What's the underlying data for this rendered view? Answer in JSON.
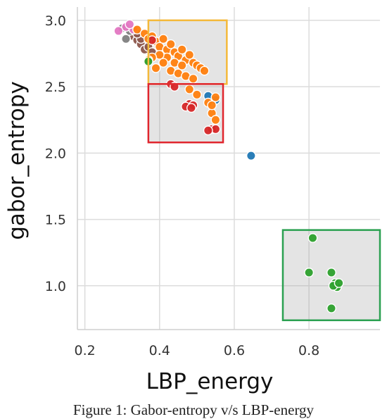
{
  "figure": {
    "caption": "Figure 1: Gabor-entropy v/s LBP-energy"
  },
  "chart_data": {
    "type": "scatter",
    "xlabel": "LBP_energy",
    "ylabel": "gabor_entropy",
    "xlim": [
      0.18,
      0.99
    ],
    "ylim": [
      0.67,
      3.1
    ],
    "xticks": [
      "0.2",
      "0.4",
      "0.6",
      "0.8"
    ],
    "xtick_values": [
      0.2,
      0.4,
      0.6,
      0.8
    ],
    "yticks": [
      "1.0",
      "1.5",
      "2.0",
      "2.5",
      "3.0"
    ],
    "ytick_values": [
      1.0,
      1.5,
      2.0,
      2.5,
      3.0
    ],
    "grid": true,
    "colors": {
      "blue": "#1f77b4",
      "orange": "#ff7f0e",
      "green": "#2ca02c",
      "red": "#d62728",
      "brown": "#8c564b",
      "pink": "#e377c2",
      "gray": "#7f7f7f"
    },
    "series": [
      {
        "color": "#1f77b4",
        "points": [
          [
            0.53,
            2.43
          ],
          [
            0.55,
            2.4
          ],
          [
            0.645,
            1.98
          ]
        ]
      },
      {
        "color": "#8c564b",
        "points": [
          [
            0.33,
            2.88
          ],
          [
            0.34,
            2.85
          ],
          [
            0.35,
            2.82
          ],
          [
            0.36,
            2.78
          ],
          [
            0.37,
            2.8
          ],
          [
            0.38,
            2.76
          ],
          [
            0.35,
            2.86
          ],
          [
            0.34,
            2.9
          ]
        ]
      },
      {
        "color": "#7f7f7f",
        "points": [
          [
            0.3,
            2.94
          ],
          [
            0.31,
            2.86
          ],
          [
            0.32,
            2.92
          ]
        ]
      },
      {
        "color": "#e377c2",
        "points": [
          [
            0.31,
            2.95
          ],
          [
            0.33,
            2.93
          ],
          [
            0.29,
            2.92
          ],
          [
            0.32,
            2.97
          ]
        ]
      },
      {
        "color": "#ff7f0e",
        "points": [
          [
            0.34,
            2.93
          ],
          [
            0.36,
            2.9
          ],
          [
            0.37,
            2.86
          ],
          [
            0.38,
            2.88
          ],
          [
            0.39,
            2.84
          ],
          [
            0.4,
            2.8
          ],
          [
            0.41,
            2.86
          ],
          [
            0.42,
            2.78
          ],
          [
            0.43,
            2.82
          ],
          [
            0.44,
            2.76
          ],
          [
            0.45,
            2.73
          ],
          [
            0.46,
            2.78
          ],
          [
            0.47,
            2.7
          ],
          [
            0.48,
            2.74
          ],
          [
            0.49,
            2.68
          ],
          [
            0.5,
            2.66
          ],
          [
            0.51,
            2.64
          ],
          [
            0.52,
            2.62
          ],
          [
            0.44,
            2.68
          ],
          [
            0.46,
            2.66
          ],
          [
            0.42,
            2.72
          ],
          [
            0.4,
            2.74
          ],
          [
            0.38,
            2.72
          ],
          [
            0.41,
            2.68
          ],
          [
            0.43,
            2.62
          ],
          [
            0.45,
            2.6
          ],
          [
            0.47,
            2.58
          ],
          [
            0.49,
            2.56
          ],
          [
            0.39,
            2.64
          ],
          [
            0.37,
            2.7
          ],
          [
            0.48,
            2.48
          ],
          [
            0.5,
            2.44
          ],
          [
            0.53,
            2.38
          ],
          [
            0.54,
            2.3
          ],
          [
            0.55,
            2.25
          ],
          [
            0.54,
            2.36
          ],
          [
            0.55,
            2.42
          ]
        ]
      },
      {
        "color": "#2ca02c",
        "points": [
          [
            0.37,
            2.69
          ],
          [
            0.81,
            1.36
          ],
          [
            0.8,
            1.1
          ],
          [
            0.86,
            1.1
          ],
          [
            0.87,
            1.02
          ],
          [
            0.875,
            0.99
          ],
          [
            0.865,
            1.0
          ],
          [
            0.88,
            1.02
          ],
          [
            0.86,
            0.83
          ]
        ]
      },
      {
        "color": "#d62728",
        "points": [
          [
            0.38,
            2.85
          ],
          [
            0.43,
            2.52
          ],
          [
            0.44,
            2.5
          ],
          [
            0.48,
            2.37
          ],
          [
            0.47,
            2.35
          ],
          [
            0.49,
            2.36
          ],
          [
            0.485,
            2.34
          ],
          [
            0.54,
            2.18
          ],
          [
            0.55,
            2.18
          ],
          [
            0.53,
            2.17
          ]
        ]
      }
    ],
    "highlight_boxes": [
      {
        "color": "#f4b93b",
        "x": [
          0.37,
          0.58
        ],
        "y": [
          2.52,
          3.0
        ]
      },
      {
        "color": "#e0262e",
        "x": [
          0.37,
          0.57
        ],
        "y": [
          2.08,
          2.52
        ]
      },
      {
        "color": "#2aa050",
        "x": [
          0.73,
          0.99
        ],
        "y": [
          0.74,
          1.42
        ]
      }
    ]
  }
}
